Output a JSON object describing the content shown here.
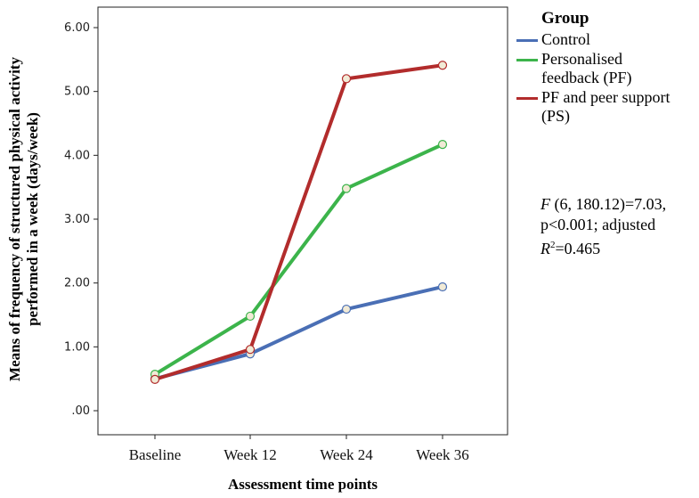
{
  "chart_data": {
    "type": "line",
    "title": "",
    "xlabel": "Assessment time points",
    "ylabel_line1": "Means of frequency of structured physical activity",
    "ylabel_line2": "performed in a week (days/week)",
    "categories": [
      "Baseline",
      "Week 12",
      "Week 24",
      "Week 36"
    ],
    "ylim": [
      0,
      6
    ],
    "yticks": [
      ".00",
      "1.00",
      "2.00",
      "3.00",
      "4.00",
      "5.00",
      "6.00"
    ],
    "grid": false,
    "legend_position": "right",
    "legend_title": "Group",
    "series": [
      {
        "name": "Control",
        "label_lines": [
          "Control"
        ],
        "color": "#4a6fb5",
        "values": [
          0.5,
          0.89,
          1.59,
          1.94
        ]
      },
      {
        "name": "Personalised feedback (PF)",
        "label_lines": [
          "Personalised",
          "feedback (PF)"
        ],
        "color": "#3cb44b",
        "values": [
          0.57,
          1.48,
          3.48,
          4.17
        ]
      },
      {
        "name": "PF and peer support (PS)",
        "label_lines": [
          "PF and peer support",
          "(PS)"
        ],
        "color": "#b22c2c",
        "values": [
          0.49,
          0.96,
          5.2,
          5.41
        ]
      }
    ]
  },
  "stats": {
    "f_symbol": "F",
    "f_text": " (6, 180.12)=7.03,",
    "line2": "p<0.001; adjusted",
    "r_symbol": "R",
    "r_sup": "2",
    "r_text": "=0.465"
  }
}
